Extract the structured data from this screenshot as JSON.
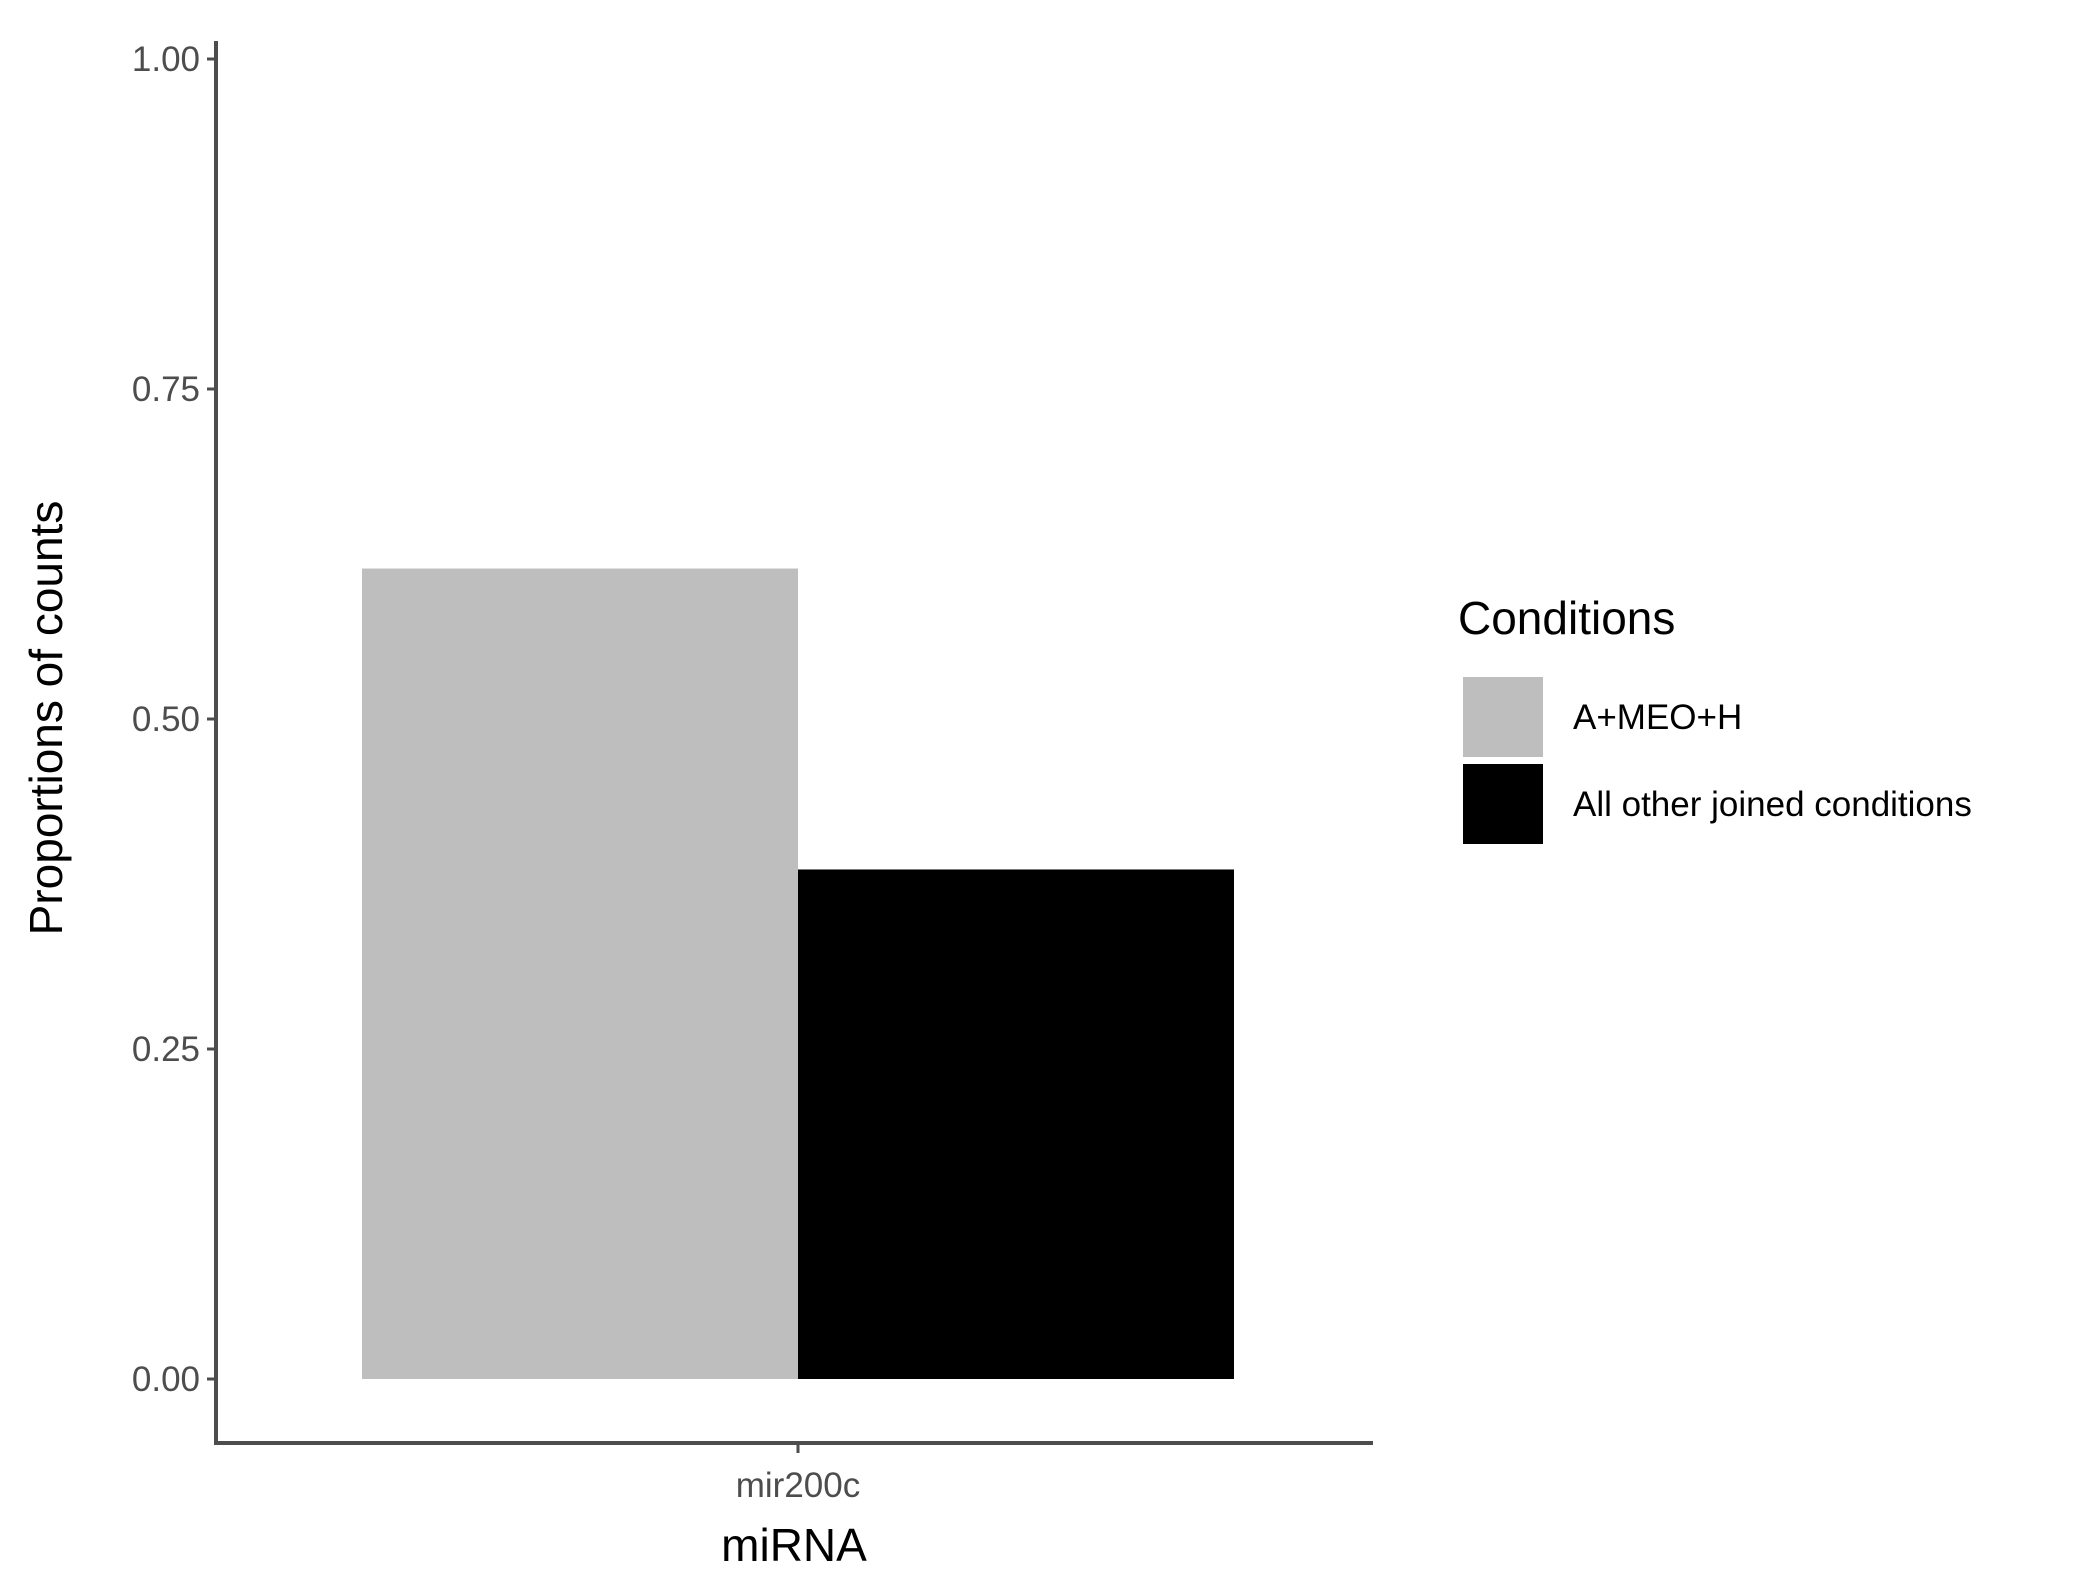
{
  "chart_data": {
    "type": "bar",
    "categories": [
      "mir200c"
    ],
    "series": [
      {
        "name": "A+MEO+H",
        "values": [
          0.614
        ],
        "color": "#bebebe"
      },
      {
        "name": "All other joined conditions",
        "values": [
          0.386
        ],
        "color": "#000000"
      }
    ],
    "xlabel": "miRNA",
    "ylabel": "Proportions of counts",
    "ylim": [
      0,
      1
    ],
    "yticks": [
      "0.00",
      "0.25",
      "0.50",
      "0.75",
      "1.00"
    ],
    "grid": false,
    "legend": {
      "title": "Conditions",
      "placement": "right"
    }
  },
  "colors": {
    "axis_line": "#4d4d4d",
    "tick_text": "#4d4d4d",
    "background": "#ffffff"
  }
}
